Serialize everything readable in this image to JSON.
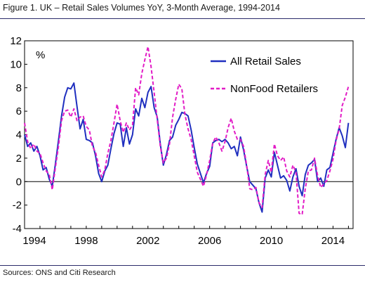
{
  "header": {
    "title": "Figure 1. UK – Retail Sales Volumes YoY, 3-Month Average, 1994-2014"
  },
  "footer": {
    "source": "Sources: ONS and Citi Research"
  },
  "chart_data": {
    "type": "line",
    "title": "Figure 1. UK – Retail Sales Volumes YoY, 3-Month Average, 1994-2014",
    "xlabel": "",
    "ylabel": "",
    "unit_label": "%",
    "xlim": [
      1994.0,
      2015.3
    ],
    "ylim": [
      -4,
      12
    ],
    "xticks": [
      1994,
      1998,
      2002,
      2006,
      2010,
      2014
    ],
    "yticks": [
      -4,
      -2,
      0,
      2,
      4,
      6,
      8,
      10,
      12
    ],
    "grid": false,
    "legend_position": "top-right",
    "series": [
      {
        "name": "All Retail Sales",
        "color": "#1f2fbf",
        "style": "solid",
        "x": [
          1994.0,
          1994.2,
          1994.4,
          1994.6,
          1994.8,
          1995.0,
          1995.2,
          1995.4,
          1995.6,
          1995.8,
          1996.0,
          1996.2,
          1996.4,
          1996.6,
          1996.8,
          1997.0,
          1997.2,
          1997.4,
          1997.6,
          1997.8,
          1998.0,
          1998.2,
          1998.4,
          1998.6,
          1998.8,
          1999.0,
          1999.2,
          1999.4,
          1999.6,
          1999.8,
          2000.0,
          2000.2,
          2000.4,
          2000.6,
          2000.8,
          2001.0,
          2001.2,
          2001.4,
          2001.6,
          2001.8,
          2002.0,
          2002.2,
          2002.4,
          2002.6,
          2002.8,
          2003.0,
          2003.2,
          2003.4,
          2003.6,
          2003.8,
          2004.0,
          2004.2,
          2004.4,
          2004.6,
          2004.8,
          2005.0,
          2005.2,
          2005.4,
          2005.6,
          2005.8,
          2006.0,
          2006.2,
          2006.4,
          2006.6,
          2006.8,
          2007.0,
          2007.2,
          2007.4,
          2007.6,
          2007.8,
          2008.0,
          2008.2,
          2008.4,
          2008.6,
          2008.8,
          2009.0,
          2009.2,
          2009.4,
          2009.6,
          2009.8,
          2010.0,
          2010.2,
          2010.4,
          2010.6,
          2010.8,
          2011.0,
          2011.2,
          2011.4,
          2011.6,
          2011.8,
          2012.0,
          2012.2,
          2012.4,
          2012.6,
          2012.8,
          2013.0,
          2013.2,
          2013.4,
          2013.6,
          2013.8,
          2014.0,
          2014.2,
          2014.4,
          2014.6,
          2014.8,
          2015.0
        ],
        "values": [
          4.0,
          3.0,
          3.3,
          2.6,
          3.0,
          2.2,
          1.0,
          1.2,
          0.2,
          -0.4,
          1.5,
          3.5,
          5.6,
          7.2,
          8.0,
          7.9,
          8.4,
          6.4,
          4.5,
          5.3,
          3.6,
          3.5,
          3.3,
          2.2,
          0.7,
          0.0,
          0.9,
          1.4,
          2.8,
          4.1,
          5.0,
          4.9,
          3.0,
          4.6,
          3.2,
          4.0,
          6.2,
          5.6,
          7.1,
          6.3,
          7.6,
          8.1,
          6.3,
          5.5,
          3.2,
          1.4,
          2.3,
          3.5,
          3.8,
          4.8,
          5.3,
          5.9,
          5.8,
          5.6,
          4.4,
          2.9,
          1.5,
          0.7,
          -0.1,
          0.7,
          1.3,
          3.3,
          3.5,
          3.6,
          3.4,
          3.6,
          3.3,
          2.8,
          3.0,
          2.2,
          3.8,
          2.7,
          1.3,
          0.0,
          -0.3,
          -0.6,
          -1.8,
          -2.6,
          0.3,
          1.0,
          0.4,
          2.5,
          1.4,
          0.3,
          0.5,
          0.1,
          -0.8,
          0.4,
          1.1,
          -0.4,
          -1.2,
          0.6,
          1.4,
          1.6,
          1.9,
          0.0,
          0.3,
          -0.4,
          1.0,
          1.2,
          2.4,
          3.6,
          4.6,
          3.9,
          2.9,
          5.0
        ]
      },
      {
        "name": "NonFood Retailers",
        "color": "#e21cc6",
        "style": "dashed",
        "x": [
          1994.0,
          1994.2,
          1994.4,
          1994.6,
          1994.8,
          1995.0,
          1995.2,
          1995.4,
          1995.6,
          1995.8,
          1996.0,
          1996.2,
          1996.4,
          1996.6,
          1996.8,
          1997.0,
          1997.2,
          1997.4,
          1997.6,
          1997.8,
          1998.0,
          1998.2,
          1998.4,
          1998.6,
          1998.8,
          1999.0,
          1999.2,
          1999.4,
          1999.6,
          1999.8,
          2000.0,
          2000.2,
          2000.4,
          2000.6,
          2000.8,
          2001.0,
          2001.2,
          2001.4,
          2001.6,
          2001.8,
          2002.0,
          2002.2,
          2002.4,
          2002.6,
          2002.8,
          2003.0,
          2003.2,
          2003.4,
          2003.6,
          2003.8,
          2004.0,
          2004.2,
          2004.4,
          2004.6,
          2004.8,
          2005.0,
          2005.2,
          2005.4,
          2005.6,
          2005.8,
          2006.0,
          2006.2,
          2006.4,
          2006.6,
          2006.8,
          2007.0,
          2007.2,
          2007.4,
          2007.6,
          2007.8,
          2008.0,
          2008.2,
          2008.4,
          2008.6,
          2008.8,
          2009.0,
          2009.2,
          2009.4,
          2009.6,
          2009.8,
          2010.0,
          2010.2,
          2010.4,
          2010.6,
          2010.8,
          2011.0,
          2011.2,
          2011.4,
          2011.6,
          2011.8,
          2012.0,
          2012.2,
          2012.4,
          2012.6,
          2012.8,
          2013.0,
          2013.2,
          2013.4,
          2013.6,
          2013.8,
          2014.0,
          2014.2,
          2014.4,
          2014.6,
          2014.8,
          2015.0
        ],
        "values": [
          5.0,
          3.4,
          2.8,
          3.2,
          2.6,
          2.4,
          1.6,
          0.9,
          0.6,
          -0.7,
          1.2,
          3.0,
          5.2,
          6.0,
          6.1,
          5.5,
          6.2,
          5.2,
          5.5,
          5.6,
          4.7,
          4.4,
          3.0,
          2.5,
          1.4,
          0.4,
          1.0,
          2.4,
          3.5,
          5.0,
          6.6,
          5.2,
          4.2,
          5.0,
          4.4,
          4.8,
          8.0,
          7.4,
          9.2,
          10.4,
          11.5,
          9.8,
          7.6,
          5.3,
          3.0,
          1.6,
          2.0,
          3.2,
          5.5,
          7.0,
          8.3,
          7.9,
          5.7,
          4.5,
          3.6,
          2.2,
          0.8,
          0.2,
          -0.4,
          0.6,
          1.8,
          3.3,
          3.8,
          3.3,
          2.6,
          3.4,
          4.6,
          5.4,
          4.3,
          3.6,
          3.6,
          3.0,
          1.4,
          -0.6,
          -0.7,
          -0.5,
          -1.8,
          -2.2,
          0.6,
          1.8,
          0.8,
          3.2,
          2.2,
          1.8,
          2.1,
          0.9,
          0.4,
          1.4,
          0.8,
          -2.7,
          -2.8,
          -0.6,
          0.9,
          1.0,
          2.0,
          0.5,
          -0.5,
          -0.2,
          0.1,
          0.9,
          1.9,
          3.5,
          4.5,
          6.5,
          7.2,
          8.1
        ]
      }
    ]
  }
}
